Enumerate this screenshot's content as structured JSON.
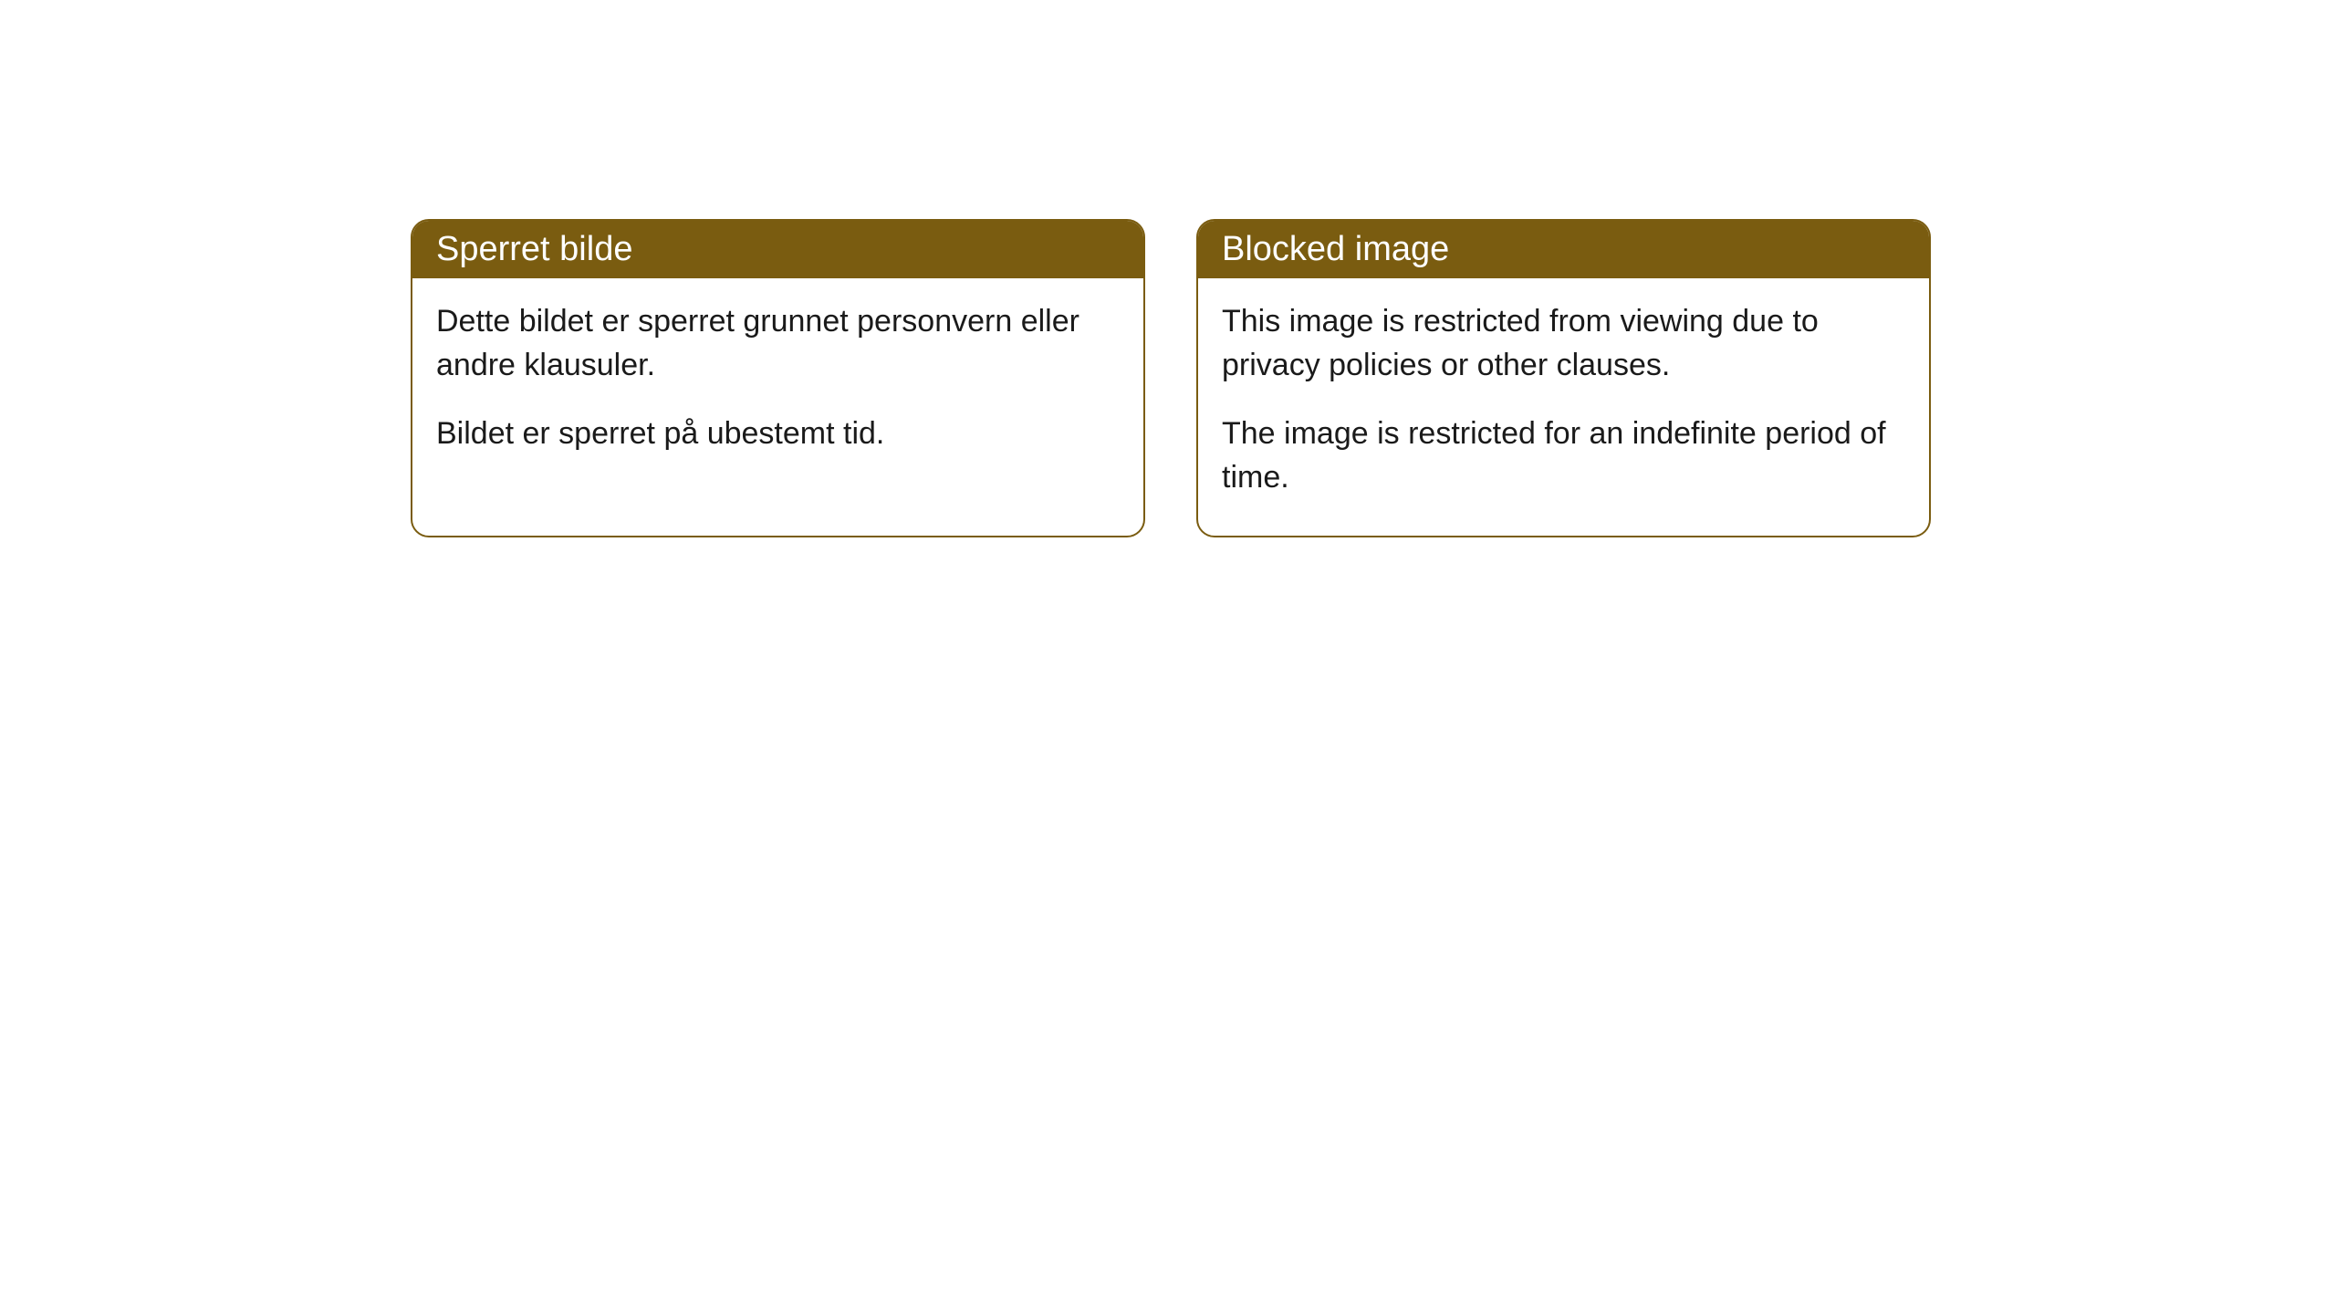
{
  "cards": [
    {
      "title": "Sperret bilde",
      "paragraph1": "Dette bildet er sperret grunnet personvern eller andre klausuler.",
      "paragraph2": "Bildet er sperret på ubestemt tid."
    },
    {
      "title": "Blocked image",
      "paragraph1": "This image is restricted from viewing due to privacy policies or other clauses.",
      "paragraph2": "The image is restricted for an indefinite period of time."
    }
  ],
  "styling": {
    "card_border_color": "#7a5c10",
    "card_header_background": "#7a5c10",
    "card_header_text_color": "#ffffff",
    "card_body_background": "#ffffff",
    "card_body_text_color": "#1a1a1a",
    "card_border_radius": 20,
    "header_font_size": 38,
    "body_font_size": 34
  }
}
